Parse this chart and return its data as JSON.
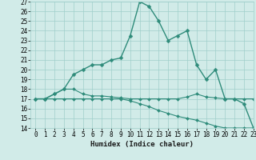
{
  "title": "",
  "xlabel": "Humidex (Indice chaleur)",
  "x": [
    0,
    1,
    2,
    3,
    4,
    5,
    6,
    7,
    8,
    9,
    10,
    11,
    12,
    13,
    14,
    15,
    16,
    17,
    18,
    19,
    20,
    21,
    22,
    23
  ],
  "line1_y": [
    17,
    17,
    17.5,
    18,
    19.5,
    20,
    20.5,
    20.5,
    21,
    21.2,
    23.5,
    27,
    26.5,
    25,
    23,
    23.5,
    24,
    20.5,
    19,
    20,
    17,
    17,
    16.5,
    14
  ],
  "line2_y": [
    17,
    17,
    17.5,
    18,
    18,
    17.5,
    17.3,
    17.3,
    17.2,
    17.1,
    17,
    17,
    17,
    17,
    17,
    17,
    17.2,
    17.5,
    17.2,
    17.1,
    17,
    17,
    17,
    17
  ],
  "line3_y": [
    17,
    17,
    17,
    17,
    17,
    17,
    17,
    17,
    17,
    17,
    16.8,
    16.5,
    16.2,
    15.8,
    15.5,
    15.2,
    15.0,
    14.8,
    14.5,
    14.2,
    14.0,
    14.0,
    14.0,
    14.0
  ],
  "color": "#2e8b7a",
  "bg_color": "#d1ebe8",
  "grid_color": "#9fcfcb",
  "ylim": [
    14,
    27
  ],
  "xlim": [
    -0.5,
    23
  ],
  "yticks": [
    14,
    15,
    16,
    17,
    18,
    19,
    20,
    21,
    22,
    23,
    24,
    25,
    26,
    27
  ],
  "xticks": [
    0,
    1,
    2,
    3,
    4,
    5,
    6,
    7,
    8,
    9,
    10,
    11,
    12,
    13,
    14,
    15,
    16,
    17,
    18,
    19,
    20,
    21,
    22,
    23
  ],
  "tick_fontsize": 5.5,
  "xlabel_fontsize": 6.5,
  "marker": "D",
  "markersize1": 2.5,
  "markersize2": 2.0,
  "lw1": 1.0,
  "lw2": 0.8
}
